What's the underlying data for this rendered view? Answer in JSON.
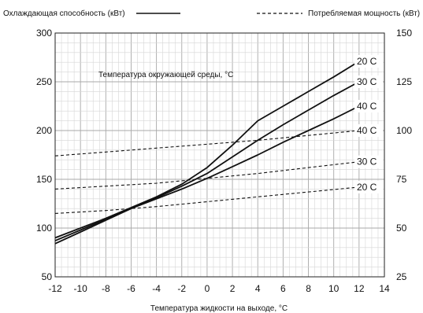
{
  "chart_data": {
    "type": "line",
    "title": "",
    "xlabel": "Температура жидкости на выходе, °C",
    "ylabel_left": "",
    "ylabel_right": "",
    "annotation": "Температура окружающей среды, °C",
    "legend": {
      "placement": "top",
      "entries": [
        {
          "label": "Охлаждающая способность (кВт)",
          "style": "solid"
        },
        {
          "label": "Потребляемая мощность (кВт)",
          "style": "dashed"
        }
      ]
    },
    "xlim": [
      -12,
      14
    ],
    "xticks": [
      -12,
      -10,
      -8,
      -6,
      -4,
      -2,
      0,
      2,
      4,
      6,
      8,
      10,
      12,
      14
    ],
    "ylim_left": [
      50,
      300
    ],
    "yticks_left": [
      50,
      100,
      150,
      200,
      250,
      300
    ],
    "ylim_right": [
      25,
      150
    ],
    "yticks_right": [
      25,
      50,
      75,
      100,
      125,
      150
    ],
    "grid": true,
    "series": [
      {
        "label": "20 C",
        "axis": "left",
        "style": "solid",
        "x": [
          -12,
          -10,
          -8,
          -6,
          -4,
          -2,
          0,
          2,
          4,
          6,
          8,
          10,
          12
        ],
        "y": [
          90,
          100,
          110,
          121,
          132,
          145,
          162,
          185,
          210,
          225,
          240,
          255,
          271
        ]
      },
      {
        "label": "30 C",
        "axis": "left",
        "style": "solid",
        "x": [
          -12,
          -10,
          -8,
          -6,
          -4,
          -2,
          0,
          2,
          4,
          6,
          8,
          10,
          12
        ],
        "y": [
          87,
          98,
          109,
          120,
          131,
          143,
          156,
          173,
          190,
          206,
          221,
          236,
          250
        ]
      },
      {
        "label": "40 C",
        "axis": "left",
        "style": "solid",
        "x": [
          -12,
          -10,
          -8,
          -6,
          -4,
          -2,
          0,
          2,
          4,
          6,
          8,
          10,
          12
        ],
        "y": [
          84,
          96,
          108,
          120,
          130,
          140,
          151,
          163,
          175,
          188,
          200,
          212,
          225
        ]
      },
      {
        "label": "40 C",
        "axis": "right",
        "style": "dashed",
        "x": [
          -12,
          -8,
          -4,
          0,
          4,
          8,
          12
        ],
        "y": [
          87,
          89,
          91,
          93,
          95,
          97.5,
          100
        ]
      },
      {
        "label": "30 C",
        "axis": "right",
        "style": "dashed",
        "x": [
          -12,
          -8,
          -4,
          0,
          4,
          8,
          12
        ],
        "y": [
          70,
          71.5,
          73,
          75.5,
          78,
          81,
          84
        ]
      },
      {
        "label": "20 C",
        "axis": "right",
        "style": "dashed",
        "x": [
          -12,
          -8,
          -4,
          0,
          4,
          8,
          12
        ],
        "y": [
          57.5,
          59,
          61,
          63.5,
          66,
          68.5,
          71
        ]
      }
    ]
  }
}
